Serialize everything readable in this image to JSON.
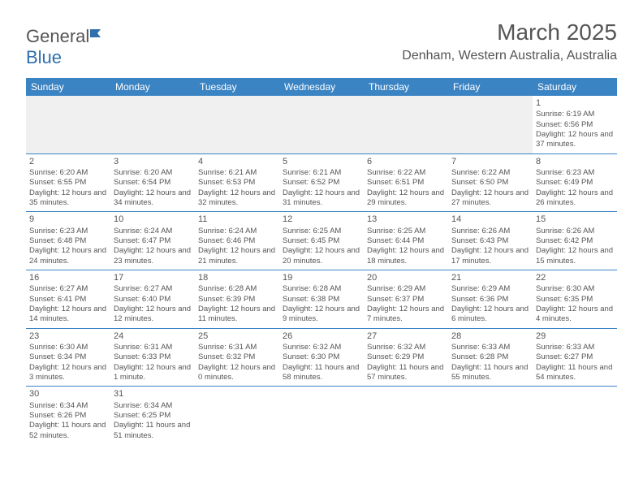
{
  "logo": {
    "general": "General",
    "blue": "Blue",
    "icon_color": "#2f6fad"
  },
  "title": "March 2025",
  "location": "Denham, Western Australia, Australia",
  "colors": {
    "header_bg": "#3b84c4",
    "header_fg": "#ffffff",
    "row_alt_bg": "#f0f0f0",
    "border": "#3b84c4",
    "text": "#555555"
  },
  "day_headers": [
    "Sunday",
    "Monday",
    "Tuesday",
    "Wednesday",
    "Thursday",
    "Friday",
    "Saturday"
  ],
  "weeks": [
    [
      null,
      null,
      null,
      null,
      null,
      null,
      {
        "d": "1",
        "sr": "6:19 AM",
        "ss": "6:56 PM",
        "dl": "12 hours and 37 minutes."
      }
    ],
    [
      {
        "d": "2",
        "sr": "6:20 AM",
        "ss": "6:55 PM",
        "dl": "12 hours and 35 minutes."
      },
      {
        "d": "3",
        "sr": "6:20 AM",
        "ss": "6:54 PM",
        "dl": "12 hours and 34 minutes."
      },
      {
        "d": "4",
        "sr": "6:21 AM",
        "ss": "6:53 PM",
        "dl": "12 hours and 32 minutes."
      },
      {
        "d": "5",
        "sr": "6:21 AM",
        "ss": "6:52 PM",
        "dl": "12 hours and 31 minutes."
      },
      {
        "d": "6",
        "sr": "6:22 AM",
        "ss": "6:51 PM",
        "dl": "12 hours and 29 minutes."
      },
      {
        "d": "7",
        "sr": "6:22 AM",
        "ss": "6:50 PM",
        "dl": "12 hours and 27 minutes."
      },
      {
        "d": "8",
        "sr": "6:23 AM",
        "ss": "6:49 PM",
        "dl": "12 hours and 26 minutes."
      }
    ],
    [
      {
        "d": "9",
        "sr": "6:23 AM",
        "ss": "6:48 PM",
        "dl": "12 hours and 24 minutes."
      },
      {
        "d": "10",
        "sr": "6:24 AM",
        "ss": "6:47 PM",
        "dl": "12 hours and 23 minutes."
      },
      {
        "d": "11",
        "sr": "6:24 AM",
        "ss": "6:46 PM",
        "dl": "12 hours and 21 minutes."
      },
      {
        "d": "12",
        "sr": "6:25 AM",
        "ss": "6:45 PM",
        "dl": "12 hours and 20 minutes."
      },
      {
        "d": "13",
        "sr": "6:25 AM",
        "ss": "6:44 PM",
        "dl": "12 hours and 18 minutes."
      },
      {
        "d": "14",
        "sr": "6:26 AM",
        "ss": "6:43 PM",
        "dl": "12 hours and 17 minutes."
      },
      {
        "d": "15",
        "sr": "6:26 AM",
        "ss": "6:42 PM",
        "dl": "12 hours and 15 minutes."
      }
    ],
    [
      {
        "d": "16",
        "sr": "6:27 AM",
        "ss": "6:41 PM",
        "dl": "12 hours and 14 minutes."
      },
      {
        "d": "17",
        "sr": "6:27 AM",
        "ss": "6:40 PM",
        "dl": "12 hours and 12 minutes."
      },
      {
        "d": "18",
        "sr": "6:28 AM",
        "ss": "6:39 PM",
        "dl": "12 hours and 11 minutes."
      },
      {
        "d": "19",
        "sr": "6:28 AM",
        "ss": "6:38 PM",
        "dl": "12 hours and 9 minutes."
      },
      {
        "d": "20",
        "sr": "6:29 AM",
        "ss": "6:37 PM",
        "dl": "12 hours and 7 minutes."
      },
      {
        "d": "21",
        "sr": "6:29 AM",
        "ss": "6:36 PM",
        "dl": "12 hours and 6 minutes."
      },
      {
        "d": "22",
        "sr": "6:30 AM",
        "ss": "6:35 PM",
        "dl": "12 hours and 4 minutes."
      }
    ],
    [
      {
        "d": "23",
        "sr": "6:30 AM",
        "ss": "6:34 PM",
        "dl": "12 hours and 3 minutes."
      },
      {
        "d": "24",
        "sr": "6:31 AM",
        "ss": "6:33 PM",
        "dl": "12 hours and 1 minute."
      },
      {
        "d": "25",
        "sr": "6:31 AM",
        "ss": "6:32 PM",
        "dl": "12 hours and 0 minutes."
      },
      {
        "d": "26",
        "sr": "6:32 AM",
        "ss": "6:30 PM",
        "dl": "11 hours and 58 minutes."
      },
      {
        "d": "27",
        "sr": "6:32 AM",
        "ss": "6:29 PM",
        "dl": "11 hours and 57 minutes."
      },
      {
        "d": "28",
        "sr": "6:33 AM",
        "ss": "6:28 PM",
        "dl": "11 hours and 55 minutes."
      },
      {
        "d": "29",
        "sr": "6:33 AM",
        "ss": "6:27 PM",
        "dl": "11 hours and 54 minutes."
      }
    ],
    [
      {
        "d": "30",
        "sr": "6:34 AM",
        "ss": "6:26 PM",
        "dl": "11 hours and 52 minutes."
      },
      {
        "d": "31",
        "sr": "6:34 AM",
        "ss": "6:25 PM",
        "dl": "11 hours and 51 minutes."
      },
      null,
      null,
      null,
      null,
      null
    ]
  ],
  "labels": {
    "sunrise": "Sunrise:",
    "sunset": "Sunset:",
    "daylight": "Daylight:"
  }
}
